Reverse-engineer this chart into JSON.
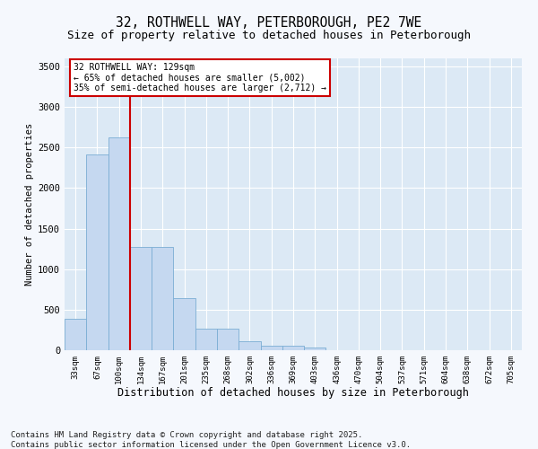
{
  "title": "32, ROTHWELL WAY, PETERBOROUGH, PE2 7WE",
  "subtitle": "Size of property relative to detached houses in Peterborough",
  "xlabel": "Distribution of detached houses by size in Peterborough",
  "ylabel": "Number of detached properties",
  "bar_color": "#c5d8f0",
  "bar_edge_color": "#7aadd4",
  "plot_bg_color": "#dce9f5",
  "fig_bg_color": "#f5f8fd",
  "grid_color": "#ffffff",
  "vline_color": "#cc0000",
  "annotation_text": "32 ROTHWELL WAY: 129sqm\n← 65% of detached houses are smaller (5,002)\n35% of semi-detached houses are larger (2,712) →",
  "annotation_box_color": "#cc0000",
  "categories": [
    "33sqm",
    "67sqm",
    "100sqm",
    "134sqm",
    "167sqm",
    "201sqm",
    "235sqm",
    "268sqm",
    "302sqm",
    "336sqm",
    "369sqm",
    "403sqm",
    "436sqm",
    "470sqm",
    "504sqm",
    "537sqm",
    "571sqm",
    "604sqm",
    "638sqm",
    "672sqm",
    "705sqm"
  ],
  "values": [
    390,
    2420,
    2620,
    1270,
    1270,
    640,
    270,
    270,
    110,
    55,
    50,
    30,
    5,
    0,
    0,
    0,
    0,
    0,
    0,
    0,
    0
  ],
  "ylim": [
    0,
    3600
  ],
  "yticks": [
    0,
    500,
    1000,
    1500,
    2000,
    2500,
    3000,
    3500
  ],
  "footer": "Contains HM Land Registry data © Crown copyright and database right 2025.\nContains public sector information licensed under the Open Government Licence v3.0.",
  "footer_fontsize": 6.5,
  "title_fontsize": 10.5,
  "subtitle_fontsize": 9
}
